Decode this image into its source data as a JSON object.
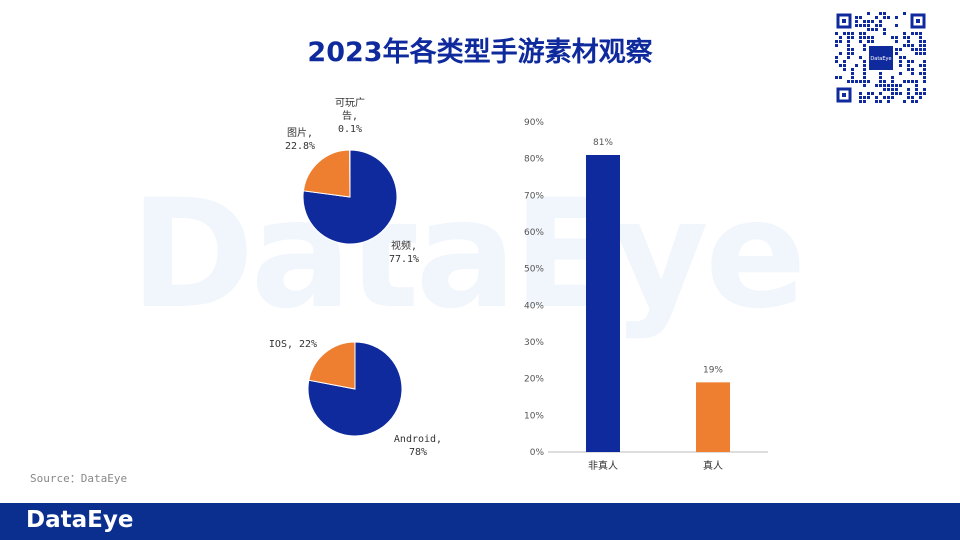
{
  "title": "2023年各类型手游素材观察",
  "watermark": "DataEye",
  "qr_center_text": "DataEye",
  "source": "Source：DataEye",
  "footer_logo": "DataEye",
  "colors": {
    "blue": "#0f2a9c",
    "orange": "#ee7f31",
    "footer": "#0a2f8f"
  },
  "chart_data": [
    {
      "type": "pie",
      "slices": [
        {
          "label_lines": [
            "视频,",
            "77.1%"
          ],
          "value": 77.1,
          "color": "#0f2a9c"
        },
        {
          "label_lines": [
            "图片,",
            "22.8%"
          ],
          "value": 22.8,
          "color": "#ee7f31"
        },
        {
          "label_lines": [
            "可玩广",
            "告,",
            "0.1%"
          ],
          "value": 0.1,
          "color": "#cccccc"
        }
      ]
    },
    {
      "type": "pie",
      "slices": [
        {
          "label_lines": [
            "Android,",
            "78%"
          ],
          "value": 78,
          "color": "#0f2a9c"
        },
        {
          "label_lines": [
            "IOS, 22%"
          ],
          "value": 22,
          "color": "#ee7f31"
        }
      ]
    },
    {
      "type": "bar",
      "categories": [
        "非真人",
        "真人"
      ],
      "values": [
        81,
        19
      ],
      "data_labels": [
        "81%",
        "19%"
      ],
      "colors": [
        "#0f2a9c",
        "#ee7f31"
      ],
      "ylim": [
        0,
        90
      ],
      "yticks": [
        "0%",
        "10%",
        "20%",
        "30%",
        "40%",
        "50%",
        "60%",
        "70%",
        "80%",
        "90%"
      ]
    }
  ]
}
